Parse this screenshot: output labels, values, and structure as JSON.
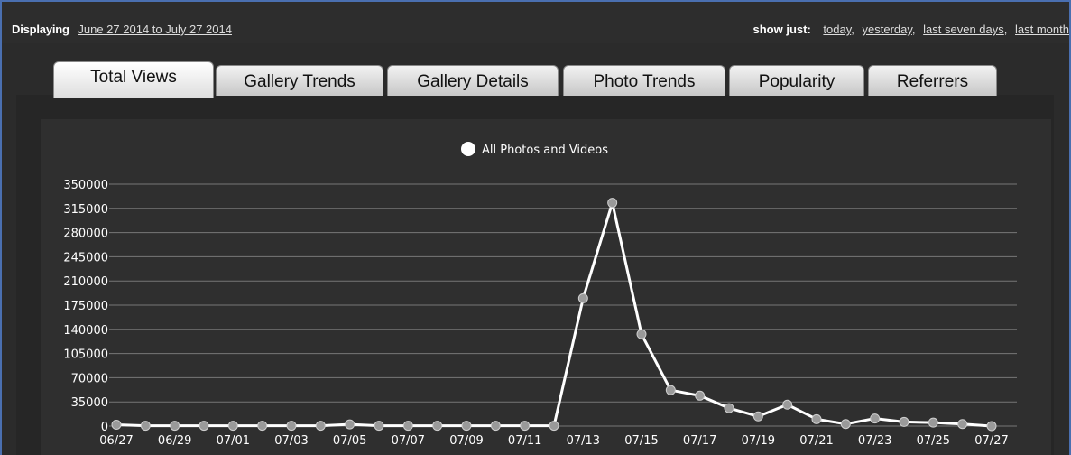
{
  "header": {
    "displaying_label": "Displaying",
    "date_range": "June 27 2014 to July 27 2014",
    "show_just_label": "show just:",
    "show_just_links": [
      "today",
      "yesterday",
      "last seven days",
      "last month"
    ]
  },
  "tabs": [
    {
      "label": "Total Views",
      "active": true
    },
    {
      "label": "Gallery Trends",
      "active": false
    },
    {
      "label": "Gallery Details",
      "active": false
    },
    {
      "label": "Photo Trends",
      "active": false
    },
    {
      "label": "Popularity",
      "active": false
    },
    {
      "label": "Referrers",
      "active": false
    }
  ],
  "chart_data": {
    "type": "line",
    "title": "",
    "xlabel": "",
    "ylabel": "",
    "ylim": [
      0,
      350000
    ],
    "yticks": [
      0,
      35000,
      70000,
      105000,
      140000,
      175000,
      210000,
      245000,
      280000,
      315000,
      350000
    ],
    "categories": [
      "06/27",
      "06/28",
      "06/29",
      "06/30",
      "07/01",
      "07/02",
      "07/03",
      "07/04",
      "07/05",
      "07/06",
      "07/07",
      "07/08",
      "07/09",
      "07/10",
      "07/11",
      "07/12",
      "07/13",
      "07/14",
      "07/15",
      "07/16",
      "07/17",
      "07/18",
      "07/19",
      "07/20",
      "07/21",
      "07/22",
      "07/23",
      "07/24",
      "07/25",
      "07/26",
      "07/27"
    ],
    "xtick_labels": [
      "06/27",
      "06/29",
      "07/01",
      "07/03",
      "07/05",
      "07/07",
      "07/09",
      "07/11",
      "07/13",
      "07/15",
      "07/17",
      "07/19",
      "07/21",
      "07/23",
      "07/25",
      "07/27"
    ],
    "series": [
      {
        "name": "All Photos and Videos",
        "values": [
          2000,
          500,
          500,
          500,
          500,
          500,
          500,
          500,
          2500,
          500,
          500,
          500,
          500,
          500,
          500,
          500,
          185000,
          323000,
          133000,
          52000,
          44000,
          26000,
          14000,
          31000,
          10000,
          3000,
          11000,
          6000,
          5000,
          3000,
          0
        ]
      }
    ],
    "grid": true,
    "legend": "top-center",
    "colors": {
      "line": "#ffffff",
      "marker": "#9a9a9a",
      "grid": "#777777",
      "text": "#ffffff"
    }
  }
}
